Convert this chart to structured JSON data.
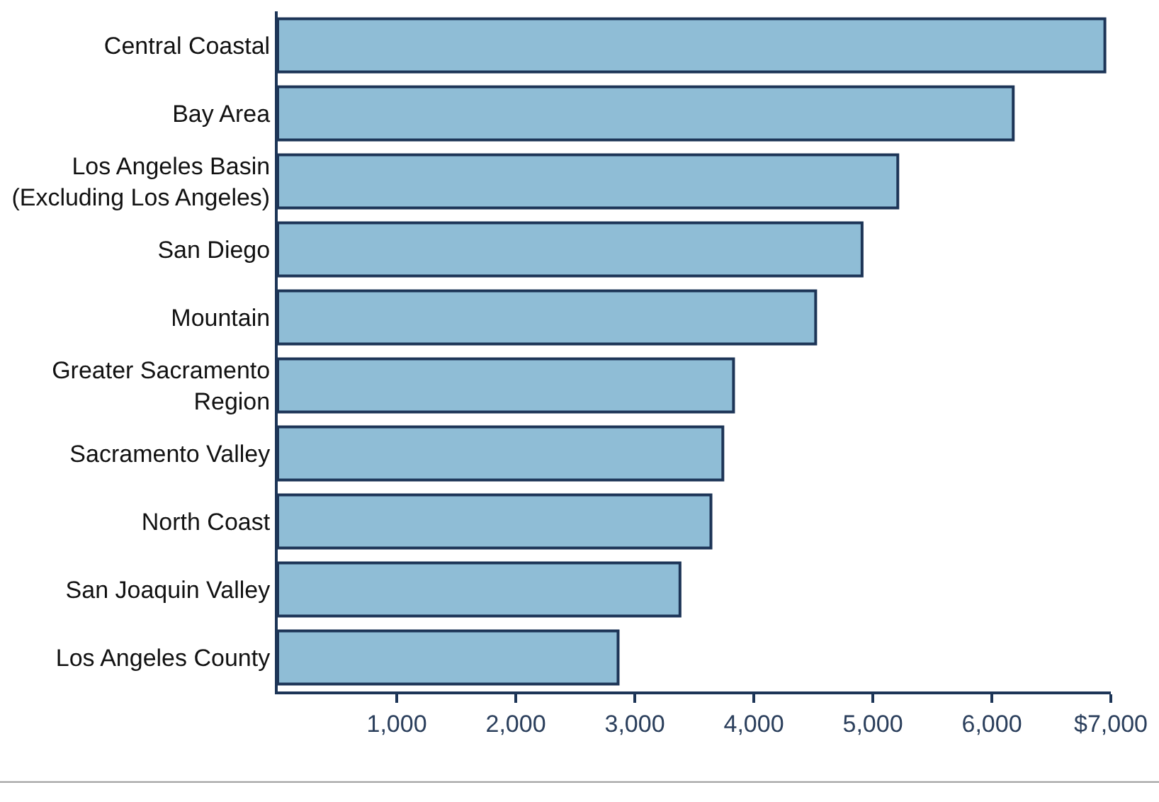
{
  "chart_data": {
    "type": "bar",
    "orientation": "horizontal",
    "categories": [
      "Central Coastal",
      "Bay Area",
      "Los Angeles Basin\n(Excluding Los Angeles)",
      "San Diego",
      "Mountain",
      "Greater Sacramento\nRegion",
      "Sacramento Valley",
      "North Coast",
      "San Joaquin Valley",
      "Los Angeles County"
    ],
    "values": [
      6950,
      6180,
      5210,
      4910,
      4520,
      3830,
      3740,
      3640,
      3380,
      2860
    ],
    "color": "#8fbdd6",
    "xlim": [
      0,
      7000
    ],
    "xticks": [
      {
        "value": 1000,
        "label": "1,000"
      },
      {
        "value": 2000,
        "label": "2,000"
      },
      {
        "value": 3000,
        "label": "3,000"
      },
      {
        "value": 4000,
        "label": "4,000"
      },
      {
        "value": 5000,
        "label": "5,000"
      },
      {
        "value": 6000,
        "label": "6,000"
      },
      {
        "value": 7000,
        "label": "$7,000"
      }
    ],
    "legend": false
  }
}
